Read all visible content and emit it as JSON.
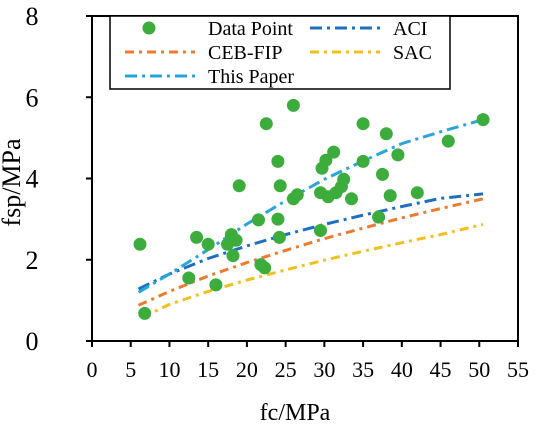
{
  "chart_data": {
    "type": "scatter",
    "title": "",
    "xlabel": "fc/MPa",
    "ylabel": "fsp/MPa",
    "xlim": [
      0,
      55
    ],
    "ylim": [
      0,
      8
    ],
    "xticks": [
      "0",
      "5",
      "10",
      "15",
      "20",
      "25",
      "30",
      "35",
      "40",
      "45",
      "50",
      "55"
    ],
    "yticks": [
      "0",
      "2",
      "4",
      "6",
      "8"
    ],
    "grid": false,
    "legend_position": "top, inside plot",
    "legend": [
      {
        "label": "Data Point",
        "kind": "marker",
        "color": "#3cac3c"
      },
      {
        "label": "ACI",
        "kind": "line",
        "color": "#1f6fbf"
      },
      {
        "label": "CEB-FIP",
        "kind": "line",
        "color": "#ee7a2f"
      },
      {
        "label": "SAC",
        "kind": "line",
        "color": "#f0c020"
      },
      {
        "label": "This Paper",
        "kind": "line",
        "color": "#2aa5d8"
      }
    ],
    "series": [
      {
        "name": "Data Point",
        "type": "scatter",
        "color": "#3cac3c",
        "points": [
          [
            6.2,
            2.38
          ],
          [
            6.8,
            0.68
          ],
          [
            12.5,
            1.55
          ],
          [
            13.5,
            2.55
          ],
          [
            15.0,
            2.38
          ],
          [
            16.0,
            1.38
          ],
          [
            17.5,
            2.38
          ],
          [
            18.0,
            2.62
          ],
          [
            18.2,
            2.1
          ],
          [
            18.6,
            2.48
          ],
          [
            19.0,
            3.82
          ],
          [
            21.5,
            2.98
          ],
          [
            21.8,
            1.88
          ],
          [
            22.3,
            1.8
          ],
          [
            22.5,
            5.35
          ],
          [
            24.0,
            3.0
          ],
          [
            24.0,
            4.42
          ],
          [
            24.2,
            2.55
          ],
          [
            24.3,
            3.82
          ],
          [
            26.0,
            5.8
          ],
          [
            26.0,
            3.5
          ],
          [
            26.5,
            3.6
          ],
          [
            29.5,
            2.72
          ],
          [
            29.5,
            3.65
          ],
          [
            29.7,
            4.25
          ],
          [
            30.2,
            4.45
          ],
          [
            30.5,
            3.55
          ],
          [
            31.2,
            4.65
          ],
          [
            31.5,
            3.65
          ],
          [
            32.2,
            3.8
          ],
          [
            32.5,
            3.98
          ],
          [
            33.5,
            3.5
          ],
          [
            35.0,
            5.35
          ],
          [
            35.0,
            4.42
          ],
          [
            37.0,
            3.05
          ],
          [
            37.5,
            4.1
          ],
          [
            38.0,
            5.1
          ],
          [
            38.5,
            3.58
          ],
          [
            39.5,
            4.58
          ],
          [
            42.0,
            3.65
          ],
          [
            46.0,
            4.92
          ],
          [
            50.5,
            5.45
          ]
        ]
      },
      {
        "name": "ACI",
        "type": "line",
        "color": "#1f6fbf",
        "points": [
          [
            6,
            1.28
          ],
          [
            10,
            1.65
          ],
          [
            15,
            2.03
          ],
          [
            20,
            2.34
          ],
          [
            25,
            2.62
          ],
          [
            30,
            2.87
          ],
          [
            35,
            3.1
          ],
          [
            40,
            3.31
          ],
          [
            45,
            3.51
          ],
          [
            50.5,
            3.62
          ]
        ]
      },
      {
        "name": "CEB-FIP",
        "type": "line",
        "color": "#ee7a2f",
        "points": [
          [
            6,
            0.88
          ],
          [
            10,
            1.22
          ],
          [
            15,
            1.6
          ],
          [
            20,
            1.93
          ],
          [
            25,
            2.23
          ],
          [
            30,
            2.52
          ],
          [
            35,
            2.78
          ],
          [
            40,
            3.03
          ],
          [
            45,
            3.26
          ],
          [
            50.5,
            3.5
          ]
        ]
      },
      {
        "name": "SAC",
        "type": "line",
        "color": "#f0c020",
        "points": [
          [
            6.5,
            0.58
          ],
          [
            10,
            0.9
          ],
          [
            15,
            1.22
          ],
          [
            20,
            1.5
          ],
          [
            25,
            1.75
          ],
          [
            30,
            1.99
          ],
          [
            35,
            2.21
          ],
          [
            40,
            2.42
          ],
          [
            45,
            2.62
          ],
          [
            50.5,
            2.87
          ]
        ]
      },
      {
        "name": "This Paper",
        "type": "line",
        "color": "#2aa5d8",
        "points": [
          [
            6,
            1.2
          ],
          [
            10,
            1.65
          ],
          [
            15,
            2.25
          ],
          [
            20,
            2.88
          ],
          [
            25,
            3.45
          ],
          [
            30,
            3.98
          ],
          [
            35,
            4.43
          ],
          [
            40,
            4.86
          ],
          [
            45,
            5.15
          ],
          [
            50.5,
            5.45
          ]
        ]
      }
    ]
  }
}
